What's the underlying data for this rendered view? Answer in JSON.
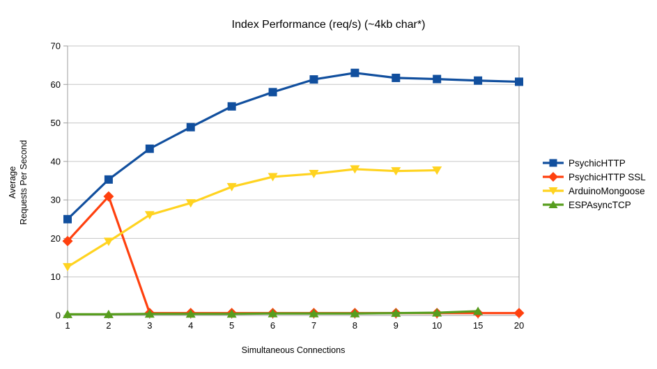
{
  "chart_data": {
    "type": "line",
    "title": "Index Performance (req/s) (~4kb char*)",
    "xlabel": "Simultaneous Connections",
    "ylabel": "Average Requests Per Second",
    "ylabel_lines": [
      "Average",
      "Requests Per Second"
    ],
    "ylim": [
      0,
      70
    ],
    "ytick_step": 10,
    "grid": true,
    "legend_position": "right",
    "categories": [
      "1",
      "2",
      "3",
      "4",
      "5",
      "6",
      "7",
      "8",
      "9",
      "10",
      "15",
      "20"
    ],
    "series": [
      {
        "name": "PsychicHTTP",
        "color": "#114f9e",
        "marker": "square",
        "values": [
          25,
          35.3,
          43.3,
          48.9,
          54.3,
          58,
          61.3,
          63,
          61.7,
          61.4,
          61,
          60.7
        ]
      },
      {
        "name": "PsychicHTTP SSL",
        "color": "#ff400e",
        "marker": "diamond",
        "values": [
          19.3,
          30.9,
          0.6,
          0.6,
          0.6,
          0.6,
          0.6,
          0.6,
          0.6,
          0.6,
          0.6,
          0.6
        ]
      },
      {
        "name": "ArduinoMongoose",
        "color": "#ffd320",
        "marker": "triangle-down",
        "values": [
          12.6,
          19.2,
          26.1,
          29.2,
          33.4,
          36,
          36.8,
          38,
          37.5,
          37.7,
          null,
          null
        ]
      },
      {
        "name": "ESPAsyncTCP",
        "color": "#579d1e",
        "marker": "triangle-up",
        "values": [
          0.3,
          0.3,
          0.4,
          0.4,
          0.4,
          0.5,
          0.5,
          0.5,
          0.6,
          0.7,
          1.1,
          null
        ]
      }
    ]
  },
  "axis_style": {
    "grid_color": "#c6c6c6",
    "axis_color": "#9e9e9e"
  }
}
